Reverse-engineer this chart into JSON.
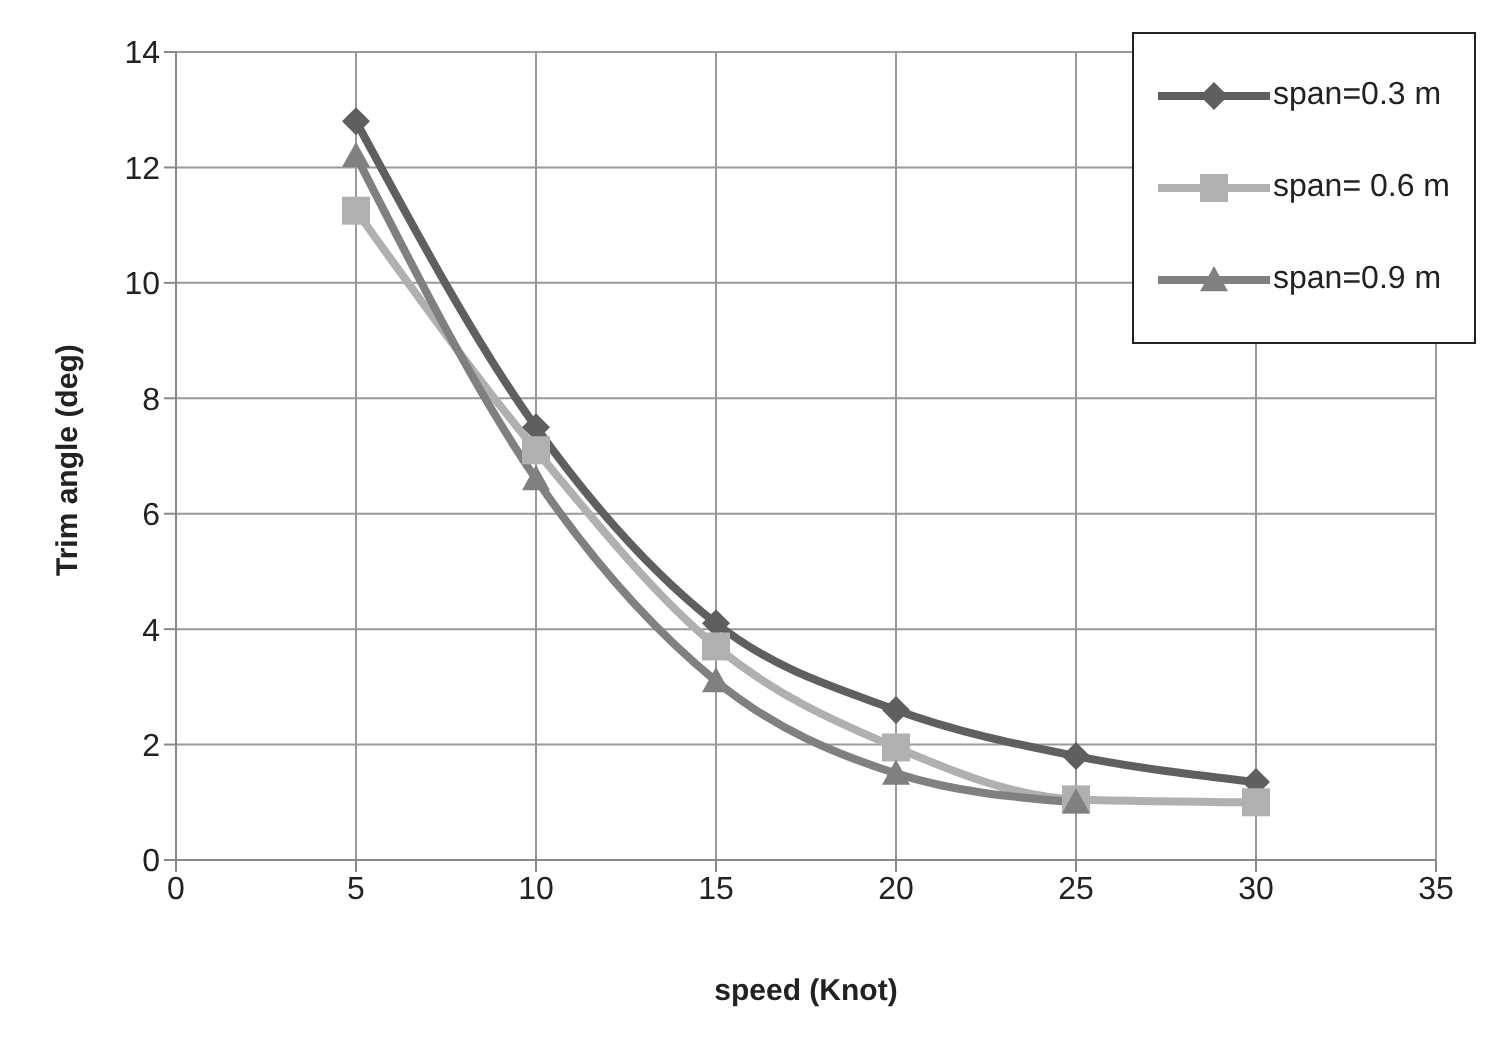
{
  "chart_data": {
    "type": "line",
    "xlabel": "speed (Knot)",
    "ylabel": "Trim angle (deg)",
    "x": [
      5,
      10,
      15,
      20,
      25,
      30
    ],
    "series": [
      {
        "name": "span=0.3 m",
        "color": "#5f5f5f",
        "marker": "diamond",
        "values": [
          12.8,
          7.5,
          4.1,
          2.6,
          1.8,
          1.35
        ]
      },
      {
        "name": "span= 0.6 m",
        "color": "#b0b0b0",
        "marker": "square",
        "values": [
          11.25,
          7.1,
          3.7,
          1.95,
          1.05,
          1.0
        ]
      },
      {
        "name": "span=0.9 m",
        "color": "#808080",
        "marker": "triangle",
        "values": [
          12.2,
          6.6,
          3.1,
          1.5,
          1.0,
          null
        ]
      }
    ],
    "xlim": [
      0,
      35
    ],
    "xticks": [
      0,
      5,
      10,
      15,
      20,
      25,
      30,
      35
    ],
    "ylim": [
      0,
      14
    ],
    "yticks": [
      0,
      2,
      4,
      6,
      8,
      10,
      12,
      14
    ],
    "grid": true,
    "legend": "top right",
    "line_style": "solid"
  }
}
